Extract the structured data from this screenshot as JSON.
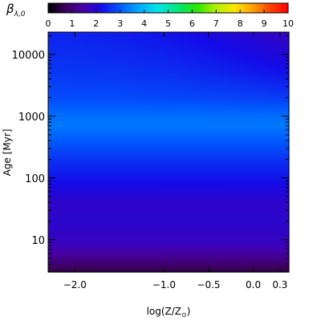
{
  "chart_data": {
    "type": "heatmap",
    "title": "",
    "colorbar": {
      "label": "β",
      "label_subscript": "λ,0",
      "range": [
        0,
        10
      ],
      "ticks": [
        "0",
        "1",
        "2",
        "3",
        "4",
        "5",
        "6",
        "7",
        "8",
        "9",
        "10"
      ],
      "colormap": "rainbow",
      "placement": "top"
    },
    "xlabel": "log(Z/Z",
    "xlabel_subscript": "⊙",
    "xlabel_tail": ")",
    "ylabel": "Age [Myr]",
    "x_ticks": [
      {
        "value": -2.0,
        "label": "−2.0"
      },
      {
        "value": -1.0,
        "label": "−1.0"
      },
      {
        "value": -0.5,
        "label": "−0.5"
      },
      {
        "value": 0.0,
        "label": "0.0"
      },
      {
        "value": 0.3,
        "label": "0.3"
      }
    ],
    "y_ticks": [
      {
        "value": 10,
        "label": "10"
      },
      {
        "value": 100,
        "label": "100"
      },
      {
        "value": 1000,
        "label": "1000"
      },
      {
        "value": 10000,
        "label": "10000"
      }
    ],
    "xlim": [
      -2.3,
      0.4
    ],
    "ylim": [
      3,
      23000
    ],
    "yscale": "log",
    "grid": false,
    "age_profile": [
      {
        "age": 3,
        "value": 0.5
      },
      {
        "age": 5,
        "value": 1.2
      },
      {
        "age": 8,
        "value": 1.7
      },
      {
        "age": 20,
        "value": 1.9
      },
      {
        "age": 40,
        "value": 1.85
      },
      {
        "age": 100,
        "value": 2.3
      },
      {
        "age": 200,
        "value": 2.6
      },
      {
        "age": 400,
        "value": 3.0
      },
      {
        "age": 700,
        "value": 3.3
      },
      {
        "age": 1000,
        "value": 3.2
      },
      {
        "age": 2000,
        "value": 2.85
      },
      {
        "age": 5000,
        "value": 2.65
      },
      {
        "age": 10000,
        "value": 2.55
      },
      {
        "age": 23000,
        "value": 2.45
      }
    ],
    "metallicity_trend": "at ages above ~1000 Myr the value decreases toward high metallicity, reaching about 1.9 at the top right"
  }
}
